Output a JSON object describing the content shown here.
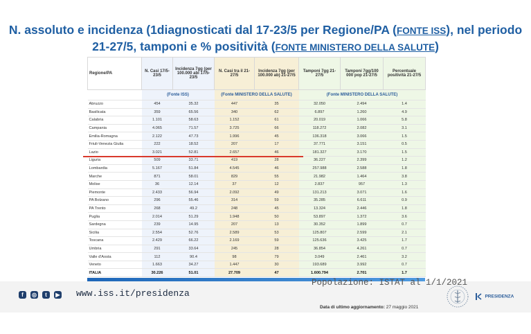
{
  "title": {
    "line1_a": "N. assoluto e incidenza (1diagnosticati dal 17-23/5 per Regione/PA (",
    "line1_src": "FONTE ISS",
    "line1_b": "), nel periodo",
    "line2_a": "21-27/5, tamponi e % positività (",
    "line2_src": "FONTE MINISTERO DELLA SALUTE",
    "line2_b": ")"
  },
  "table": {
    "headers": [
      "Regione/PA",
      "N. Casi 17/5-23/5",
      "Incidenza 7gg (per 100.000 abi 17/5-23/5",
      "N. Casi tra il 21-27/5",
      "Incidenza 7gg (per 100.000 ab) 21-27/5",
      "Tamponi 7gg 21-27/5",
      "Tamponi 7gg/100 000 pop 21-27/5",
      "Percentuale positività 21-27/5"
    ],
    "sources": [
      "(Fonte ISS)",
      "(Fonte MINISTERO DELLA SALUTE)",
      "(Fonte MINISTERO DELLA SALUTE)"
    ],
    "rows": [
      [
        "Abruzzo",
        "454",
        "35.32",
        "447",
        "35",
        "32.050",
        "2.494",
        "1.4"
      ],
      [
        "Basilicata",
        "359",
        "65.56",
        "340",
        "62",
        "6.897",
        "1.260",
        "4.9"
      ],
      [
        "Calabria",
        "1.101",
        "58.63",
        "1.152",
        "61",
        "20.019",
        "1.066",
        "5.8"
      ],
      [
        "Campania",
        "4.065",
        "71.57",
        "3.725",
        "66",
        "118.272",
        "2.082",
        "3.1"
      ],
      [
        "Emilia-Romagna",
        "2.122",
        "47.73",
        "1.996",
        "45",
        "136.318",
        "3.066",
        "1.5"
      ],
      [
        "Friuli-Venezia Giulia",
        "222",
        "18.52",
        "207",
        "17",
        "37.771",
        "3.151",
        "0.5"
      ],
      [
        "Lazio",
        "3.021",
        "52.81",
        "2.657",
        "46",
        "181.327",
        "3.170",
        "1.5"
      ],
      [
        "Liguria",
        "509",
        "33.71",
        "419",
        "28",
        "36.227",
        "2.399",
        "1.2"
      ],
      [
        "Lombardia",
        "5.167",
        "51.84",
        "4.545",
        "46",
        "257.988",
        "2.588",
        "1.8"
      ],
      [
        "Marche",
        "871",
        "58.01",
        "829",
        "55",
        "21.982",
        "1.464",
        "3.8"
      ],
      [
        "Molise",
        "36",
        "12.14",
        "37",
        "12",
        "2.837",
        "957",
        "1.3"
      ],
      [
        "Piemonte",
        "2.433",
        "56.94",
        "2.092",
        "49",
        "131.213",
        "3.071",
        "1.6"
      ],
      [
        "PA Bolzano",
        "296",
        "55.46",
        "314",
        "59",
        "35.285",
        "6.611",
        "0.9"
      ],
      [
        "PA Trento",
        "268",
        "49.2",
        "248",
        "45",
        "13.324",
        "2.446",
        "1.8"
      ],
      [
        "Puglia",
        "2.014",
        "51.29",
        "1.948",
        "50",
        "53.897",
        "1.372",
        "3.6"
      ],
      [
        "Sardegna",
        "239",
        "14.95",
        "207",
        "13",
        "30.352",
        "1.899",
        "0.7"
      ],
      [
        "Sicilia",
        "2.554",
        "52.76",
        "2.589",
        "53",
        "125.807",
        "2.599",
        "2.1"
      ],
      [
        "Toscana",
        "2.429",
        "66.22",
        "2.169",
        "59",
        "125.636",
        "3.425",
        "1.7"
      ],
      [
        "Umbria",
        "291",
        "33.64",
        "245",
        "28",
        "36.854",
        "4.261",
        "0.7"
      ],
      [
        "Valle d'Aosta",
        "112",
        "90.4",
        "98",
        "79",
        "3.049",
        "2.461",
        "3.2"
      ],
      [
        "Veneto",
        "1.663",
        "34.27",
        "1.447",
        "30",
        "193.689",
        "3.992",
        "0.7"
      ],
      [
        "ITALIA",
        "30.226",
        "51.01",
        "27.709",
        "47",
        "1.600.794",
        "2.701",
        "1.7"
      ]
    ]
  },
  "footer": {
    "url": "www.iss.it/presidenza",
    "population_note": "Popolazione: ISTAT al 1/1/2021",
    "update_label": "Data di ultimo aggiornamento:",
    "update_date": "27 maggio 2021",
    "presidenza": "PRESIDENZA",
    "social_icons": [
      "facebook-icon",
      "instagram-icon",
      "twitter-icon",
      "youtube-icon"
    ]
  },
  "colors": {
    "title": "#1f5fa3",
    "highlight_line": "#d9392c",
    "col_iss": "#eef3fb",
    "col_ministero_cases": "#f7efd6",
    "col_ministero_swabs": "#eef7e6"
  }
}
